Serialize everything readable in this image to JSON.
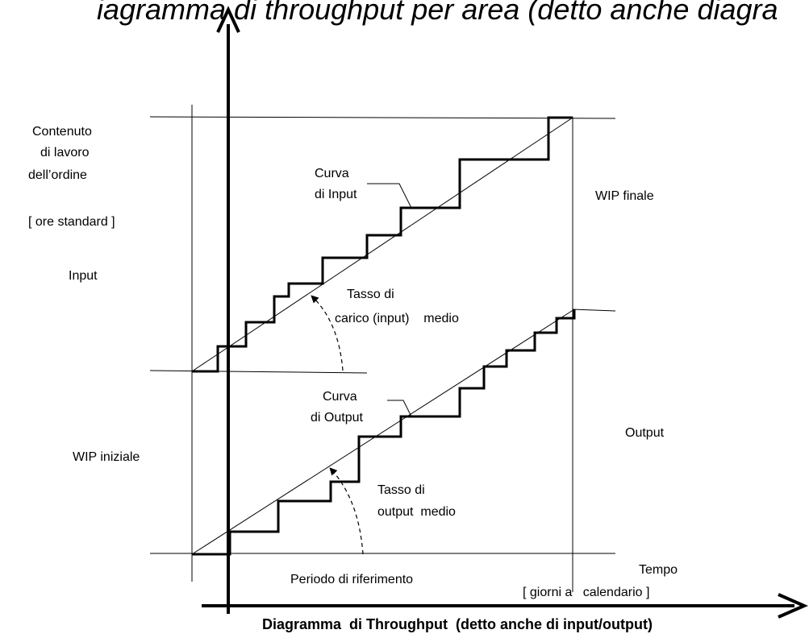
{
  "title": "iagramma di throughput per area (detto anche diagra",
  "caption": "Diagramma  di Throughput  (detto anche di input/output)",
  "labels": {
    "y_axis": [
      "Contenuto",
      "di lavoro",
      "dell’ordine",
      "[ ore standard ]"
    ],
    "input": "Input",
    "wip_initial": "WIP  iniziale",
    "wip_final": "WIP finale",
    "output": "Output",
    "input_curve": [
      "Curva",
      "di Input"
    ],
    "output_curve": [
      "Curva",
      "di Output"
    ],
    "input_rate": [
      "Tasso  di",
      "carico (input)    medio"
    ],
    "output_rate": [
      "Tasso di",
      "output  medio"
    ],
    "period": "Periodo  di riferimento",
    "time": [
      "Tempo",
      "[ giorni a   calendario ]"
    ]
  }
}
